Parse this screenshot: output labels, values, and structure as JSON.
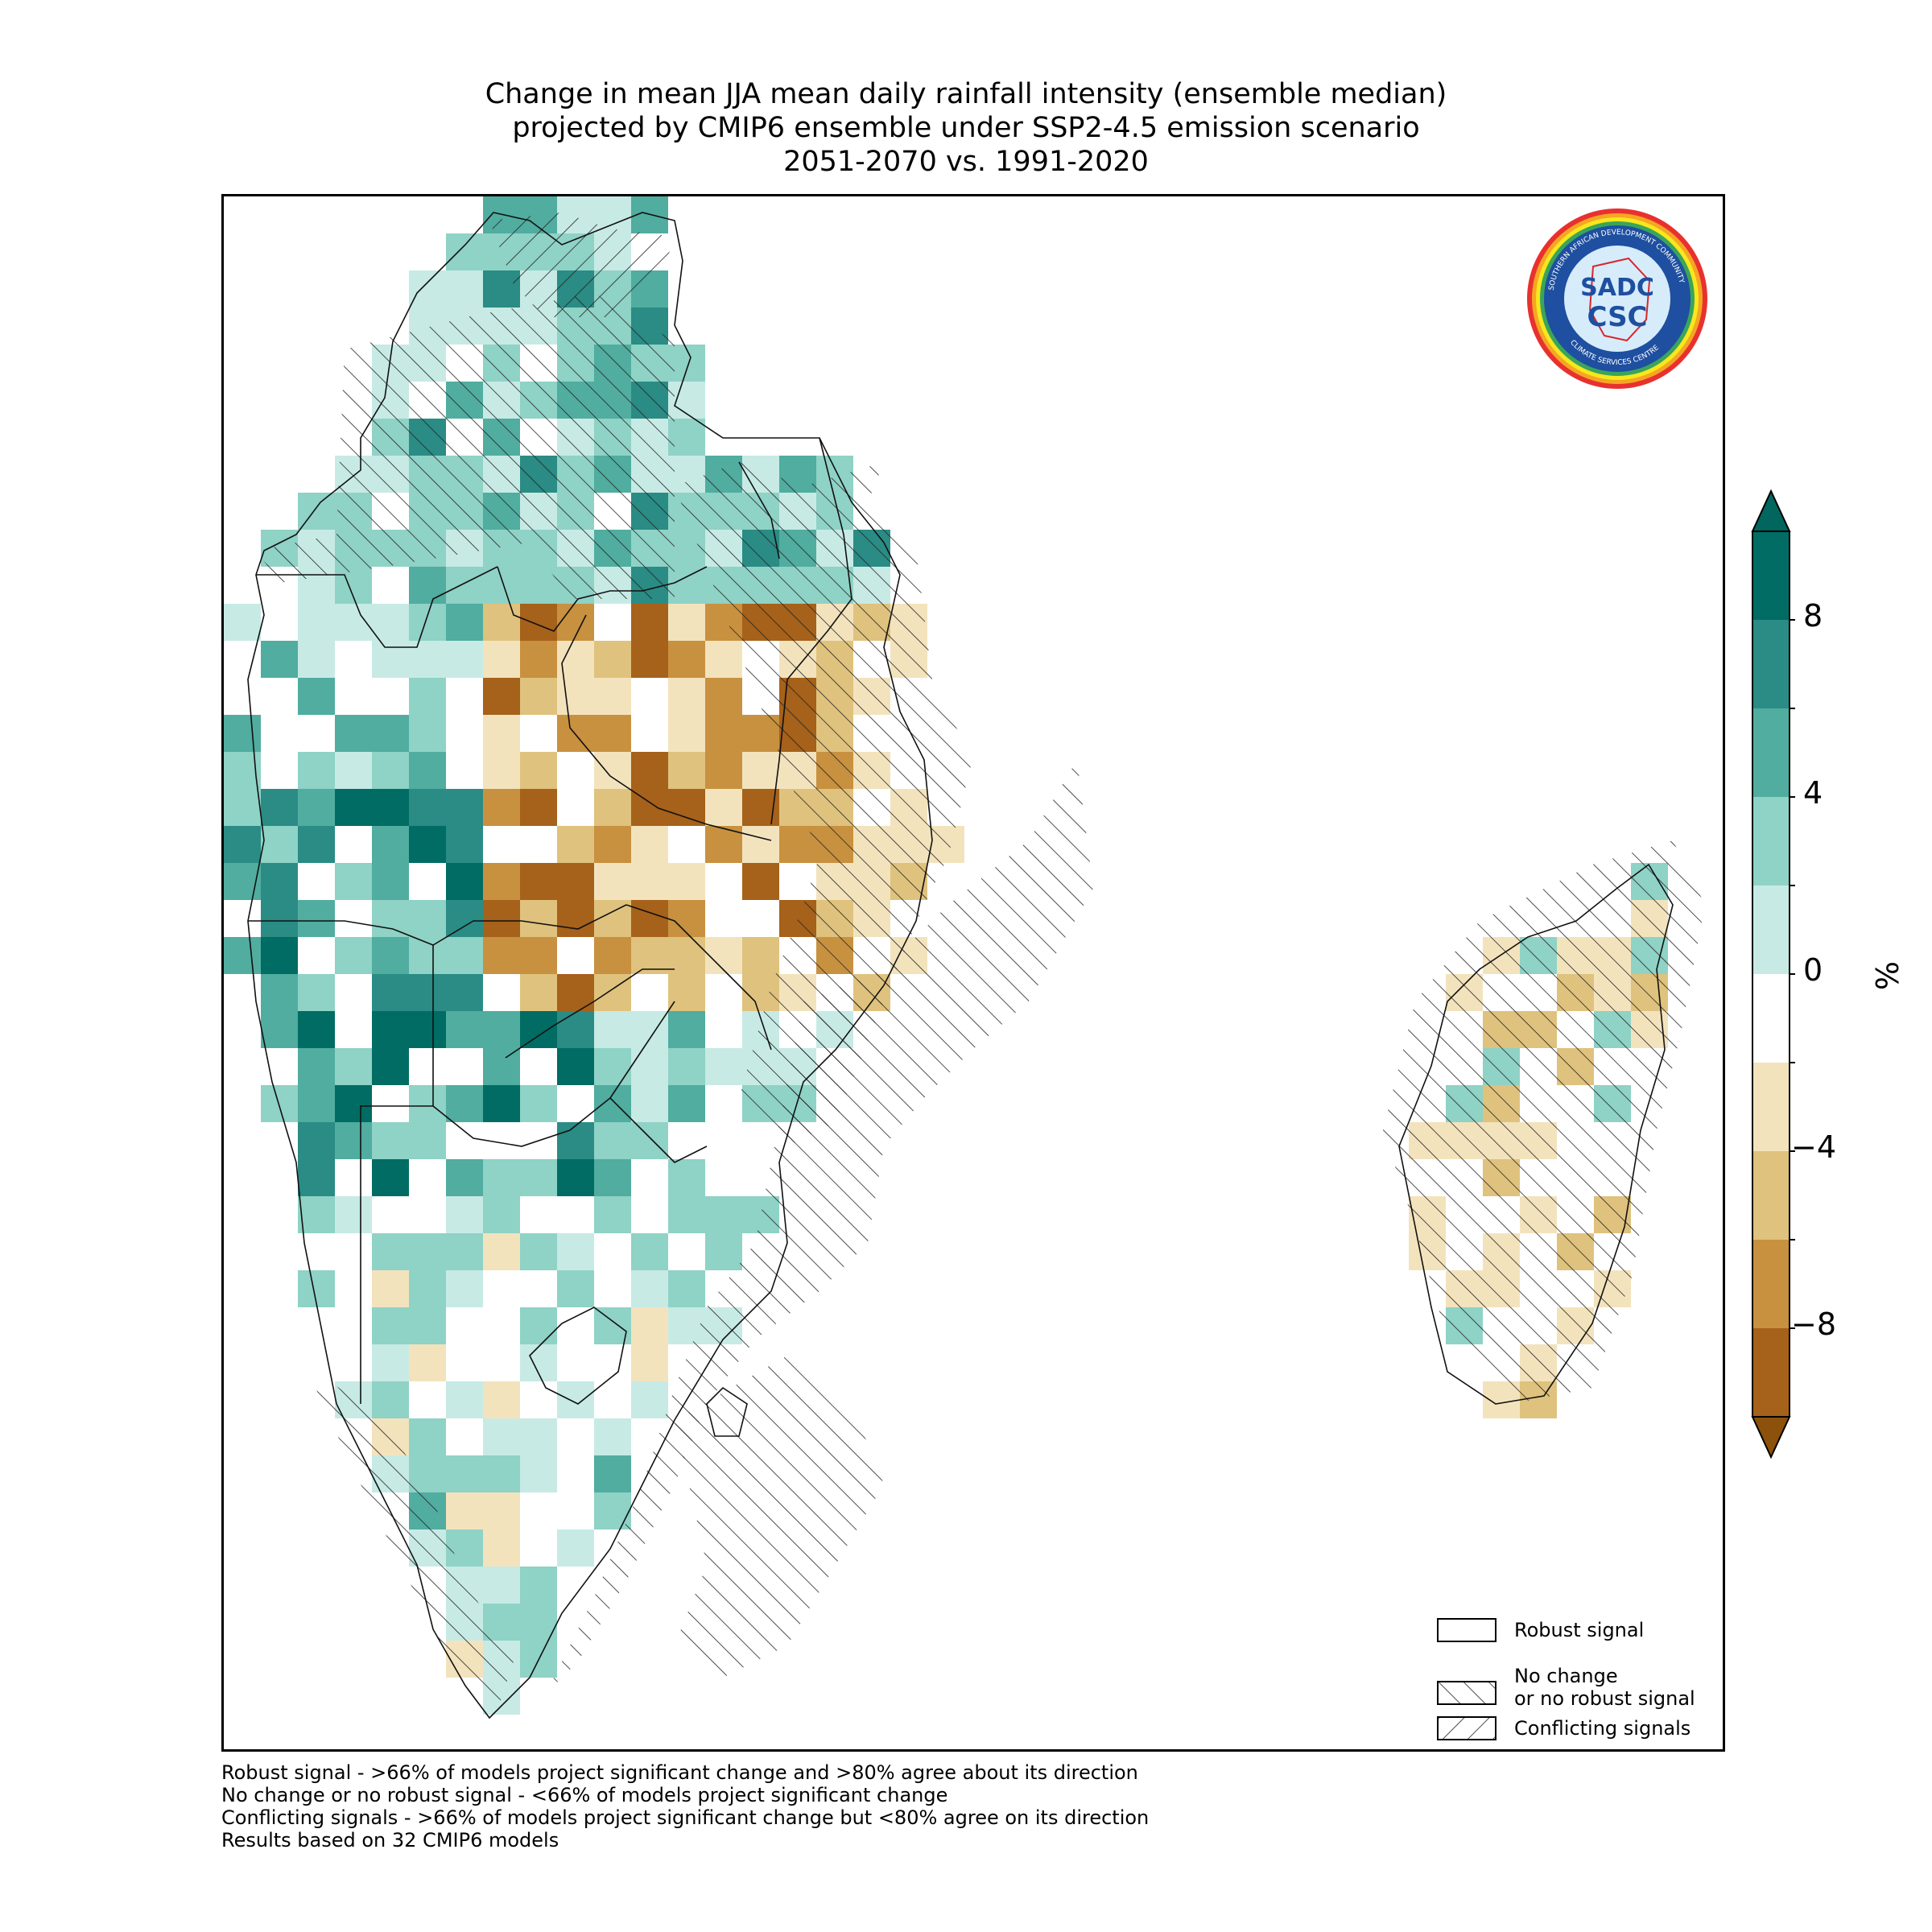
{
  "title": {
    "line1": "Change in mean JJA mean daily rainfall intensity (ensemble median)",
    "line2": "projected by CMIP6 ensemble under SSP2-4.5 emission scenario",
    "line3": "2051-2070 vs. 1991-2020"
  },
  "logo": {
    "ring_text_top": "SOUTHERN AFRICAN DEVELOPMENT COMMUNITY",
    "ring_text_bottom": "CLIMATE SERVICES CENTRE",
    "mark_top": "SADC",
    "mark_bottom": "CSC"
  },
  "legend": {
    "robust": "Robust signal",
    "no_change_1": "No change",
    "no_change_2": "or no robust signal",
    "conflicting": "Conflicting signals"
  },
  "colorbar": {
    "unit": "%",
    "ticks": [
      "8",
      "4",
      "0",
      "−4",
      "−8"
    ],
    "levels": [
      -10,
      -8,
      -6,
      -4,
      -2,
      2,
      4,
      6,
      8,
      10
    ],
    "colors": [
      "#a6611a",
      "#c8913f",
      "#dfc27d",
      "#f3e3bd",
      "#ffffff",
      "#c7eae5",
      "#8fd2c6",
      "#50ad9f",
      "#2a8c84",
      "#016c63"
    ],
    "under_color": "#8c510a",
    "over_color": "#01665e"
  },
  "footnotes": [
    "Robust signal - >66% of models project significant change and >80% agree about its direction",
    "No change or no robust signal - <66% of models project significant change",
    "Conflicting signals - >66% of models project significant change but <80% agree on its direction",
    "Results based on 32 CMIP6 models"
  ]
}
